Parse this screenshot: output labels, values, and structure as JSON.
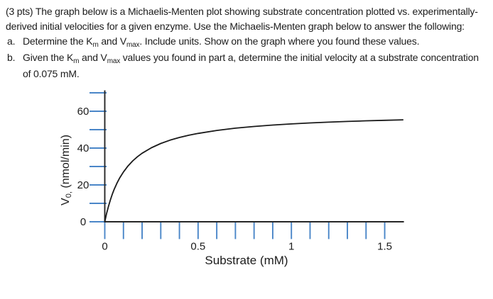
{
  "question": {
    "intro_lines": [
      "(3 pts) The graph below is a Michaelis-Menten plot showing substrate concentration plotted vs. experimentally-",
      "derived initial velocities for a given enzyme. Use the Michaelis-Menten graph below to answer the following:"
    ],
    "items": [
      {
        "marker": "a.",
        "lines": [
          [
            {
              "t": "Determine the K"
            },
            {
              "t": "m",
              "sub": true
            },
            {
              "t": " and V"
            },
            {
              "t": "max",
              "sub": true
            },
            {
              "t": ". Include units. Show on the graph where you found these values."
            }
          ]
        ]
      },
      {
        "marker": "b.",
        "lines": [
          [
            {
              "t": "Given the K"
            },
            {
              "t": "m",
              "sub": true
            },
            {
              "t": " and V"
            },
            {
              "t": "max",
              "sub": true
            },
            {
              "t": " values you found in part a, determine the initial velocity at a substrate concentration"
            }
          ],
          [
            {
              "t": "of 0.075 mM."
            }
          ]
        ]
      }
    ]
  },
  "chart_data": {
    "type": "line",
    "title": "",
    "xlabel": "Substrate (mM)",
    "ylabel": "V0, (nmol/min)",
    "ylabel_segments": [
      {
        "t": "V"
      },
      {
        "t": "0,",
        "sub": true
      },
      {
        "t": " (nmol/min)"
      }
    ],
    "xlim": [
      0,
      1.6
    ],
    "ylim": [
      0,
      70
    ],
    "x_tick_step": 0.1,
    "y_tick_step": 10,
    "x_labeled_ticks": [
      {
        "v": 0,
        "label": "0"
      },
      {
        "v": 0.5,
        "label": "0.5"
      },
      {
        "v": 1,
        "label": "1"
      },
      {
        "v": 1.5,
        "label": "1.5"
      }
    ],
    "y_labeled_ticks": [
      {
        "v": 0,
        "label": "0"
      },
      {
        "v": 20,
        "label": "20"
      },
      {
        "v": 40,
        "label": "40"
      },
      {
        "v": 60,
        "label": "60"
      }
    ],
    "grid": false,
    "legend": "none",
    "axis_color": "#262626",
    "tick_color": "#4a86c8",
    "curve_color": "#1a1a1a",
    "series": [
      {
        "name": "initial velocity vs substrate concentration",
        "model": "Michaelis-Menten",
        "Vmax_nmol_per_min": 59.5,
        "Km_mM": 0.12,
        "points": [
          [
            0,
            0.0
          ],
          [
            0.01,
            4.58
          ],
          [
            0.02,
            8.5
          ],
          [
            0.03,
            11.9
          ],
          [
            0.04,
            14.87
          ],
          [
            0.05,
            17.5
          ],
          [
            0.065,
            20.91
          ],
          [
            0.08,
            23.8
          ],
          [
            0.1,
            27.05
          ],
          [
            0.125,
            30.36
          ],
          [
            0.15,
            33.06
          ],
          [
            0.175,
            35.3
          ],
          [
            0.2,
            37.19
          ],
          [
            0.25,
            40.2
          ],
          [
            0.3,
            42.5
          ],
          [
            0.35,
            44.31
          ],
          [
            0.4,
            45.77
          ],
          [
            0.45,
            46.97
          ],
          [
            0.5,
            47.98
          ],
          [
            0.6,
            49.58
          ],
          [
            0.7,
            50.79
          ],
          [
            0.8,
            51.74
          ],
          [
            0.9,
            52.5
          ],
          [
            1.0,
            53.12
          ],
          [
            1.1,
            53.65
          ],
          [
            1.2,
            54.09
          ],
          [
            1.3,
            54.47
          ],
          [
            1.4,
            54.8
          ],
          [
            1.5,
            55.09
          ],
          [
            1.6,
            55.35
          ]
        ]
      }
    ]
  }
}
